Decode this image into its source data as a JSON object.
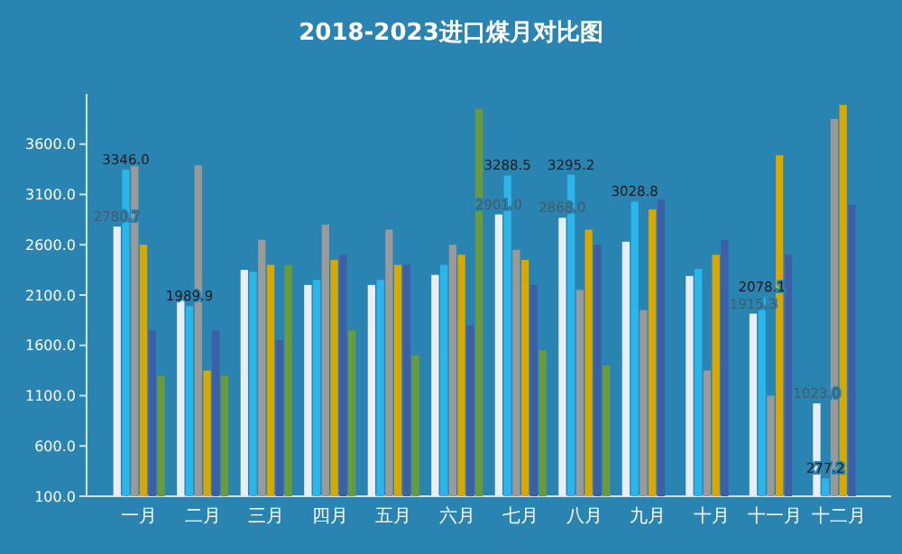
{
  "chart_data": {
    "type": "bar",
    "title": "2018-2023进口煤月对比图",
    "categories": [
      "一月",
      "二月",
      "三月",
      "四月",
      "五月",
      "六月",
      "七月",
      "八月",
      "九月",
      "十月",
      "十一月",
      "十二月"
    ],
    "series": [
      {
        "color": "#e8eef4",
        "values": [
          2780.7,
          2050,
          2350,
          2200,
          2200,
          2300,
          2901.0,
          2868.0,
          2630,
          2290,
          1915.3,
          1023.0
        ],
        "value_labels": [
          "2780.7",
          null,
          null,
          null,
          null,
          null,
          "2901.0",
          "2868.0",
          null,
          null,
          "1915.3",
          "1023.0"
        ]
      },
      {
        "color": "#2bb5e8",
        "values": [
          3346.0,
          1989.9,
          2330,
          2250,
          2250,
          2400,
          3288.5,
          3295.2,
          3028.8,
          2360,
          2078.1,
          277.2
        ],
        "value_labels": [
          "3346.0",
          "1989.9",
          null,
          null,
          null,
          null,
          "3288.5",
          "3295.2",
          "3028.8",
          null,
          "2078.1",
          "277.2"
        ]
      },
      {
        "color": "#9a9a9a",
        "values": [
          3390,
          3390,
          2650,
          2800,
          2750,
          2600,
          2550,
          2150,
          1950,
          1350,
          1100,
          3850
        ]
      },
      {
        "color": "#d9a800",
        "values": [
          2600,
          1350,
          2400,
          2450,
          2400,
          2500,
          2450,
          2750,
          2950,
          2500,
          3490,
          3990
        ]
      },
      {
        "color": "#3d5fa8",
        "values": [
          1750,
          1750,
          1650,
          2500,
          2400,
          1800,
          2200,
          2600,
          3050,
          2650,
          2500,
          3000
        ]
      },
      {
        "color": "#6a9a3c",
        "values": [
          1300,
          1300,
          2400,
          1750,
          1500,
          3950,
          1550,
          1400,
          null,
          null,
          null,
          null
        ]
      }
    ],
    "ylim": [
      100,
      4100
    ],
    "yticks": [
      {
        "value": 100,
        "label": "100.0"
      },
      {
        "value": 600,
        "label": "600.0"
      },
      {
        "value": 1100,
        "label": "1100.0"
      },
      {
        "value": 1600,
        "label": "1600.0"
      },
      {
        "value": 2100,
        "label": "2100.0"
      },
      {
        "value": 2600,
        "label": "2600.0"
      },
      {
        "value": 3100,
        "label": "3100.0"
      },
      {
        "value": 3600,
        "label": "3600.0"
      }
    ],
    "grid": false
  }
}
